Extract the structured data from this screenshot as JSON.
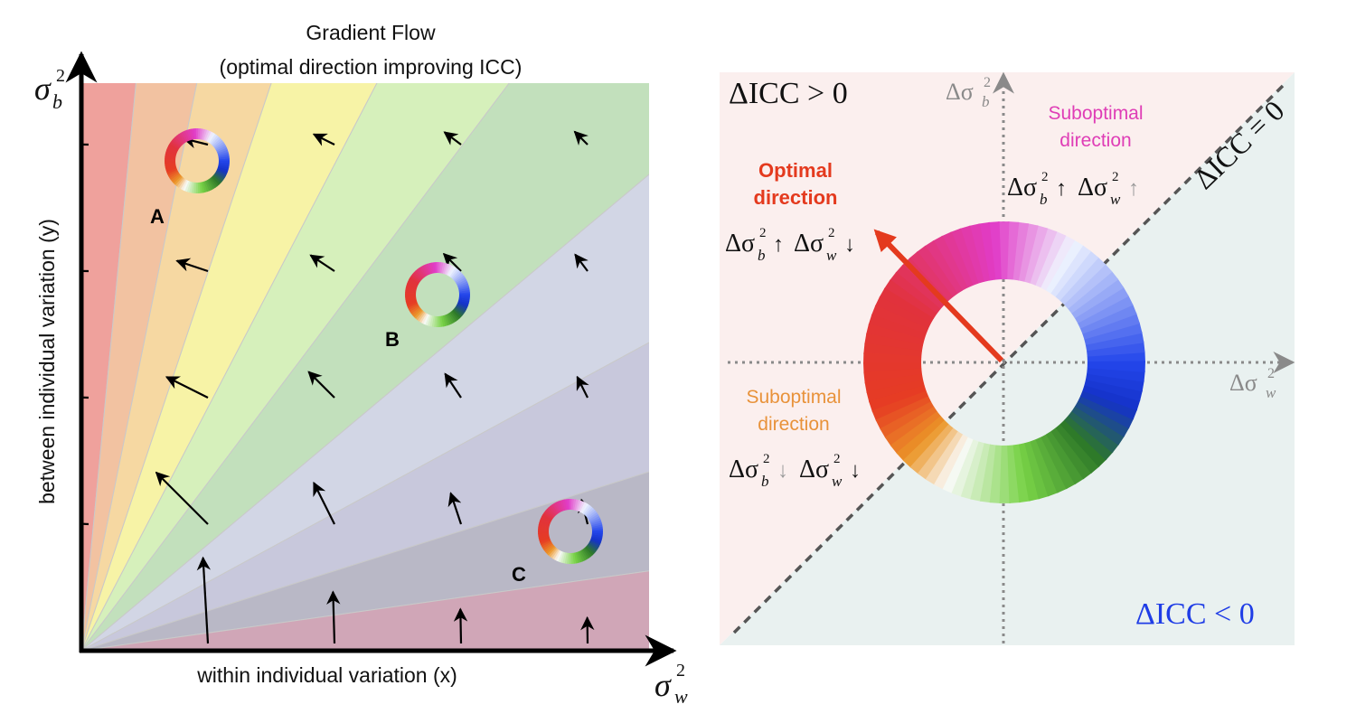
{
  "left": {
    "title_line1": "Gradient Flow",
    "title_line2": "(optimal direction improving ICC)",
    "x_axis_label": "within individual variation (x)",
    "y_axis_label": "between individual variation (y)",
    "x_axis_symbol": "σ",
    "x_axis_sub": "w",
    "x_axis_sup": "2",
    "y_axis_symbol": "σ",
    "y_axis_sub": "b",
    "y_axis_sup": "2",
    "points": [
      {
        "label": "A"
      },
      {
        "label": "B"
      },
      {
        "label": "C"
      }
    ],
    "band_colors": [
      "#efa19c",
      "#f2c2a1",
      "#f6d8a2",
      "#f7f3a6",
      "#d6f0bb",
      "#c2e0bc",
      "#d2d6e5",
      "#c8c8dc",
      "#b9b8c6",
      "#d0a6b7"
    ]
  },
  "right": {
    "upper_region_label": "ΔICC > 0",
    "lower_region_label": "ΔICC < 0",
    "diagonal_label": "ΔICC = 0",
    "axis_y_label": "Δσ",
    "axis_y_sub": "b",
    "axis_y_sup": "2",
    "axis_x_label": "Δσ",
    "axis_x_sub": "w",
    "axis_x_sup": "2",
    "optimal_title_line1": "Optimal",
    "optimal_title_line2": "direction",
    "suboptimal_top_line1": "Suboptimal",
    "suboptimal_top_line2": "direction",
    "suboptimal_left_line1": "Suboptimal",
    "suboptimal_left_line2": "direction",
    "formula_delta": "Δσ",
    "formula_sub_b": "b",
    "formula_sub_w": "w",
    "formula_sup": "2",
    "up_arrow": "↑",
    "down_arrow": "↓",
    "colors": {
      "upper_region": "#fbefee",
      "lower_region": "#e9f1f0",
      "optimal": "#e43a1e",
      "suboptimal_top": "#df3db6",
      "suboptimal_left": "#e8923a",
      "lower_label": "#1f3de6"
    }
  }
}
